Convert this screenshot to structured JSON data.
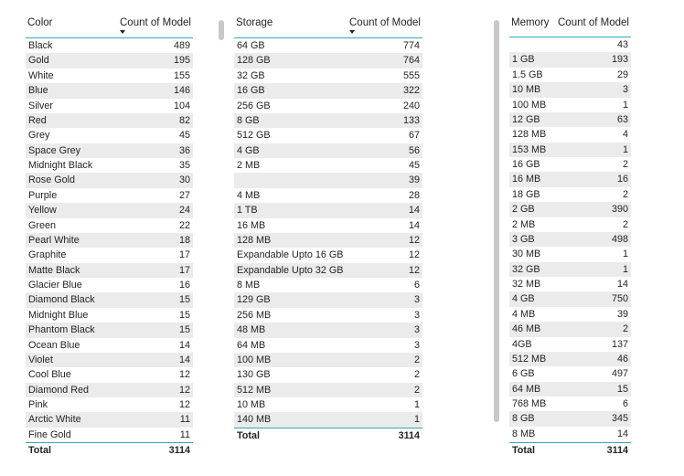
{
  "color_table": {
    "col1": "Color",
    "col2": "Count of Model",
    "rows": [
      [
        "Black",
        "489"
      ],
      [
        "Gold",
        "195"
      ],
      [
        "White",
        "155"
      ],
      [
        "Blue",
        "146"
      ],
      [
        "Silver",
        "104"
      ],
      [
        "Red",
        "82"
      ],
      [
        "Grey",
        "45"
      ],
      [
        "Space Grey",
        "36"
      ],
      [
        "Midnight Black",
        "35"
      ],
      [
        "Rose Gold",
        "30"
      ],
      [
        "Purple",
        "27"
      ],
      [
        "Yellow",
        "24"
      ],
      [
        "Green",
        "22"
      ],
      [
        "Pearl White",
        "18"
      ],
      [
        "Graphite",
        "17"
      ],
      [
        "Matte Black",
        "17"
      ],
      [
        "Glacier Blue",
        "16"
      ],
      [
        "Diamond Black",
        "15"
      ],
      [
        "Midnight Blue",
        "15"
      ],
      [
        "Phantom Black",
        "15"
      ],
      [
        "Ocean Blue",
        "14"
      ],
      [
        "Violet",
        "14"
      ],
      [
        "Cool Blue",
        "12"
      ],
      [
        "Diamond Red",
        "12"
      ],
      [
        "Pink",
        "12"
      ],
      [
        "Arctic White",
        "11"
      ],
      [
        "Fine Gold",
        "11"
      ]
    ],
    "total_label": "Total",
    "total_value": "3114"
  },
  "storage_table": {
    "col1": "Storage",
    "col2": "Count of Model",
    "rows": [
      [
        "64 GB",
        "774"
      ],
      [
        "128 GB",
        "764"
      ],
      [
        "32 GB",
        "555"
      ],
      [
        "16 GB",
        "322"
      ],
      [
        "256 GB",
        "240"
      ],
      [
        "8 GB",
        "133"
      ],
      [
        "512 GB",
        "67"
      ],
      [
        "4 GB",
        "56"
      ],
      [
        "2 MB",
        "45"
      ],
      [
        "",
        "39"
      ],
      [
        "4 MB",
        "28"
      ],
      [
        "1 TB",
        "14"
      ],
      [
        "16 MB",
        "14"
      ],
      [
        "128 MB",
        "12"
      ],
      [
        "Expandable Upto 16 GB",
        "12"
      ],
      [
        "Expandable Upto 32 GB",
        "12"
      ],
      [
        "8 MB",
        "6"
      ],
      [
        "129 GB",
        "3"
      ],
      [
        "256 MB",
        "3"
      ],
      [
        "48 MB",
        "3"
      ],
      [
        "64 MB",
        "3"
      ],
      [
        "100 MB",
        "2"
      ],
      [
        "130 GB",
        "2"
      ],
      [
        "512 MB",
        "2"
      ],
      [
        "10 MB",
        "1"
      ],
      [
        "140 MB",
        "1"
      ]
    ],
    "total_label": "Total",
    "total_value": "3114"
  },
  "memory_table": {
    "col1": "Memory",
    "col2": "Count of Model",
    "rows": [
      [
        "",
        "43"
      ],
      [
        "1 GB",
        "193"
      ],
      [
        "1.5 GB",
        "29"
      ],
      [
        "10 MB",
        "3"
      ],
      [
        "100 MB",
        "1"
      ],
      [
        "12 GB",
        "63"
      ],
      [
        "128 MB",
        "4"
      ],
      [
        "153 MB",
        "1"
      ],
      [
        "16 GB",
        "2"
      ],
      [
        "16 MB",
        "16"
      ],
      [
        "18 GB",
        "2"
      ],
      [
        "2 GB",
        "390"
      ],
      [
        "2 MB",
        "2"
      ],
      [
        "3 GB",
        "498"
      ],
      [
        "30 MB",
        "1"
      ],
      [
        "32 GB",
        "1"
      ],
      [
        "32 MB",
        "14"
      ],
      [
        "4 GB",
        "750"
      ],
      [
        "4 MB",
        "39"
      ],
      [
        "46 MB",
        "2"
      ],
      [
        "4GB",
        "137"
      ],
      [
        "512 MB",
        "46"
      ],
      [
        "6 GB",
        "497"
      ],
      [
        "64 MB",
        "15"
      ],
      [
        "768 MB",
        "6"
      ],
      [
        "8 GB",
        "345"
      ],
      [
        "8 MB",
        "14"
      ]
    ],
    "total_label": "Total",
    "total_value": "3114"
  }
}
